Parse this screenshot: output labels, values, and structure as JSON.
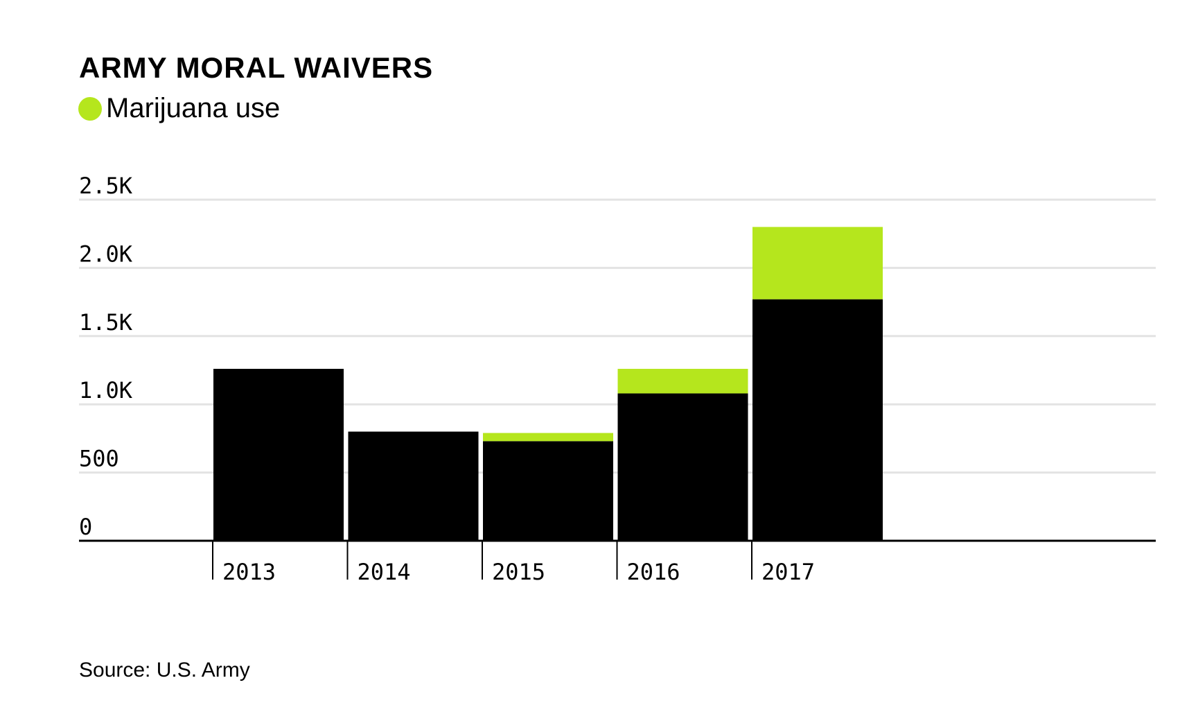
{
  "title": "ARMY MORAL WAIVERS",
  "legend": {
    "label": "Marijuana use",
    "color": "#b5e61d"
  },
  "source": "Source: U.S. Army",
  "chart_data": {
    "type": "bar",
    "stacked": true,
    "categories": [
      "2013",
      "2014",
      "2015",
      "2016",
      "2017"
    ],
    "series": [
      {
        "values": [
          1260,
          800,
          730,
          1080,
          1770
        ],
        "color": "#000000"
      },
      {
        "name": "Marijuana use",
        "values": [
          0,
          0,
          60,
          180,
          530
        ],
        "color": "#b5e61d"
      }
    ],
    "ylim": [
      0,
      2500
    ],
    "yticks": [
      0,
      500,
      1000,
      1500,
      2000,
      2500
    ],
    "ytick_labels": [
      "0",
      "500",
      "1.0K",
      "1.5K",
      "2.0K",
      "2.5K"
    ],
    "grid": true,
    "legend_position": "top-left"
  }
}
